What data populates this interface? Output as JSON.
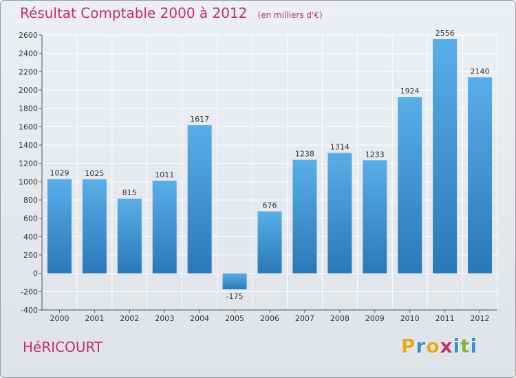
{
  "header": {
    "title": "Résultat Comptable 2000 à 2012",
    "unit": "(en milliers d'€)"
  },
  "commune": "HéRICOURT",
  "logo": {
    "text": "Proxiti",
    "letters": [
      "P",
      "r",
      "o",
      "x",
      "i",
      "t",
      "i"
    ],
    "colors": [
      "#e8a81c",
      "#3a8fd0",
      "#e8a81c",
      "#c0306a",
      "#3a8fd0",
      "#7fb43a",
      "#3a8fd0"
    ]
  },
  "colors": {
    "bar_top": "#5aaee8",
    "bar_bottom": "#2a78b8",
    "title": "#c0306a",
    "grid": "#ffffff",
    "text": "#333333"
  },
  "chart_data": {
    "type": "bar",
    "title": "Résultat Comptable 2000 à 2012",
    "subtitle": "(en milliers d'€)",
    "xlabel": "",
    "ylabel": "",
    "categories": [
      "2000",
      "2001",
      "2002",
      "2003",
      "2004",
      "2005",
      "2006",
      "2007",
      "2008",
      "2009",
      "2010",
      "2011",
      "2012"
    ],
    "values": [
      1029,
      1025,
      815,
      1011,
      1617,
      -175,
      676,
      1238,
      1314,
      1233,
      1924,
      2556,
      2140
    ],
    "ylim": [
      -400,
      2600
    ],
    "yticks": [
      -400,
      -200,
      0,
      200,
      400,
      600,
      800,
      1000,
      1200,
      1400,
      1600,
      1800,
      2000,
      2200,
      2400,
      2600
    ],
    "grid": true,
    "legend": "none"
  }
}
